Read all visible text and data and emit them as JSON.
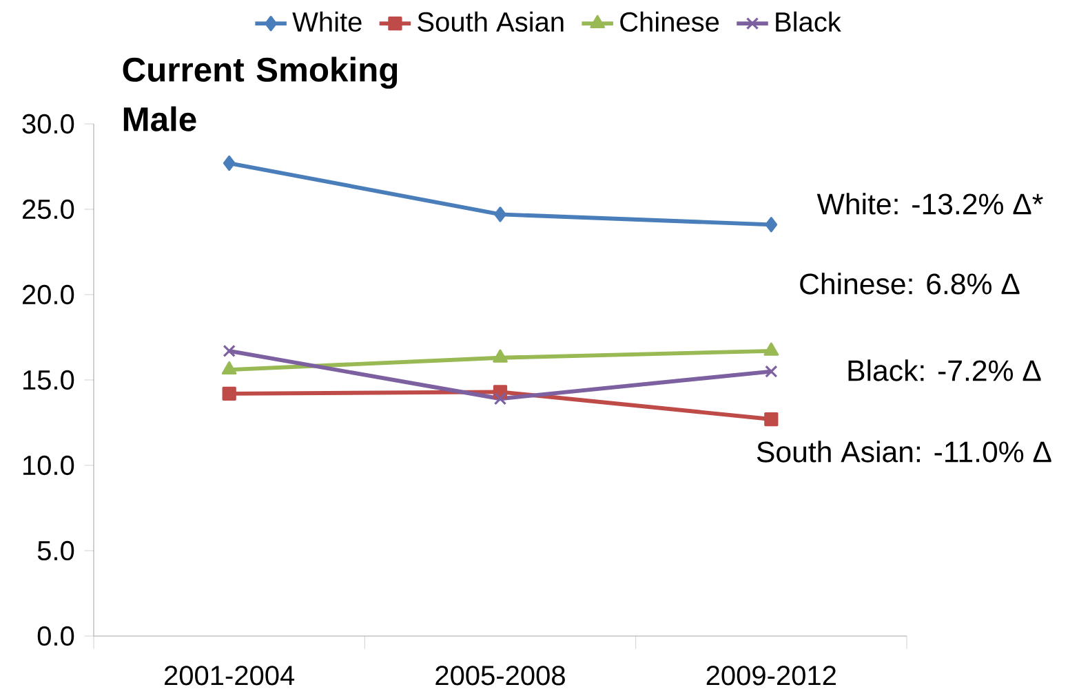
{
  "chart_data": {
    "type": "line",
    "title": "Current Smoking Male",
    "categories": [
      "2001-2004",
      "2005-2008",
      "2009-2012"
    ],
    "series": [
      {
        "name": "White",
        "color": "#4a7ebb",
        "marker": "diamond",
        "values": [
          27.7,
          24.7,
          24.1
        ]
      },
      {
        "name": "South Asian",
        "color": "#be4b48",
        "marker": "square",
        "values": [
          14.2,
          14.3,
          12.7
        ]
      },
      {
        "name": "Chinese",
        "color": "#98b954",
        "marker": "triangle",
        "values": [
          15.6,
          16.3,
          16.7
        ]
      },
      {
        "name": "Black",
        "color": "#7d60a0",
        "marker": "cross",
        "values": [
          16.7,
          13.9,
          15.5
        ]
      }
    ],
    "ylim": [
      0,
      30
    ],
    "yticks": [
      {
        "value": 0,
        "label": "0.0"
      },
      {
        "value": 5,
        "label": "5.0"
      },
      {
        "value": 10,
        "label": "10.0"
      },
      {
        "value": 15,
        "label": "15.0"
      },
      {
        "value": 20,
        "label": "20.0"
      },
      {
        "value": 25,
        "label": "25.0"
      },
      {
        "value": 30,
        "label": "30.0"
      }
    ],
    "annotations": [
      "White: -13.2%  Δ*",
      "Chinese:  6.8% Δ",
      "Black: -7.2% Δ",
      "South Asian: -11.0% Δ"
    ],
    "legend": "top",
    "grid": false,
    "line_style": "solid"
  }
}
